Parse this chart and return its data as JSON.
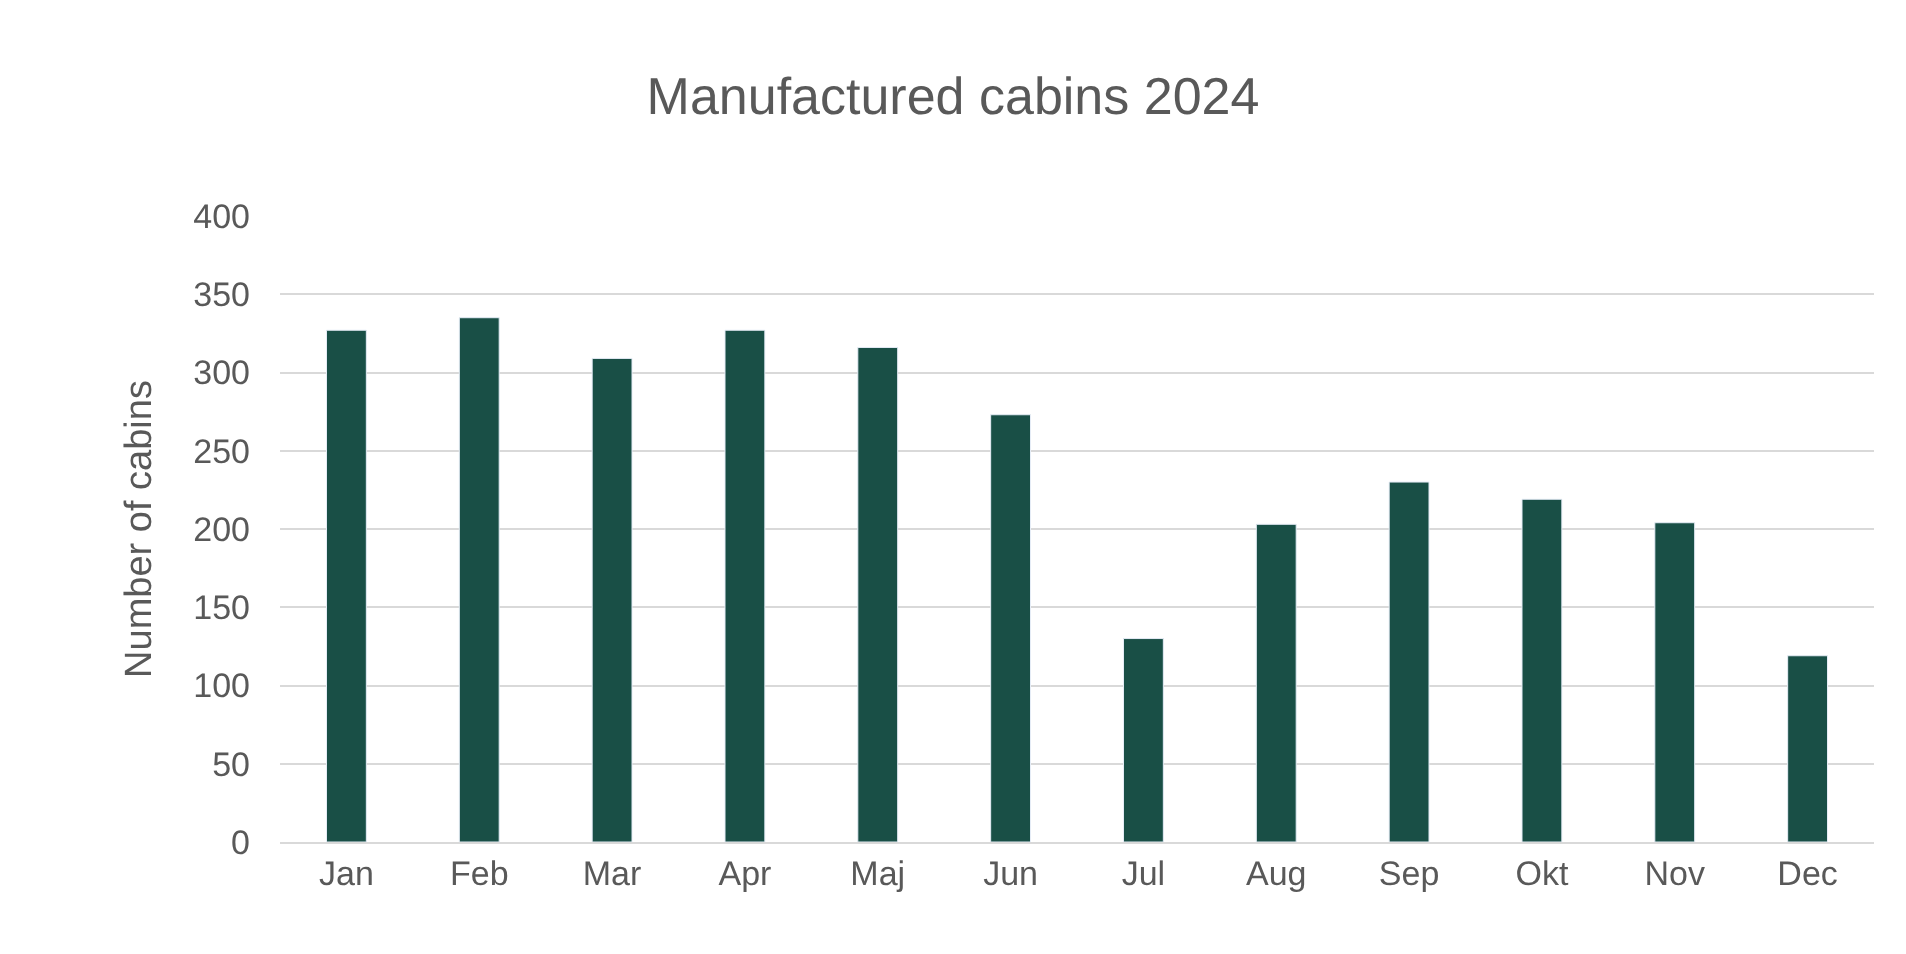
{
  "chart_data": {
    "type": "bar",
    "title": "Manufactured cabins 2024",
    "ylabel": "Number of cabins",
    "categories": [
      "Jan",
      "Feb",
      "Mar",
      "Apr",
      "Maj",
      "Jun",
      "Jul",
      "Aug",
      "Sep",
      "Okt",
      "Nov",
      "Dec"
    ],
    "values": [
      327,
      335,
      309,
      327,
      316,
      273,
      130,
      203,
      230,
      219,
      204,
      119
    ],
    "color": "#194f46",
    "ylim": [
      0,
      400
    ],
    "yticks": [
      0,
      50,
      100,
      150,
      200,
      250,
      300,
      350,
      400
    ],
    "grid": "y",
    "legend": false
  }
}
